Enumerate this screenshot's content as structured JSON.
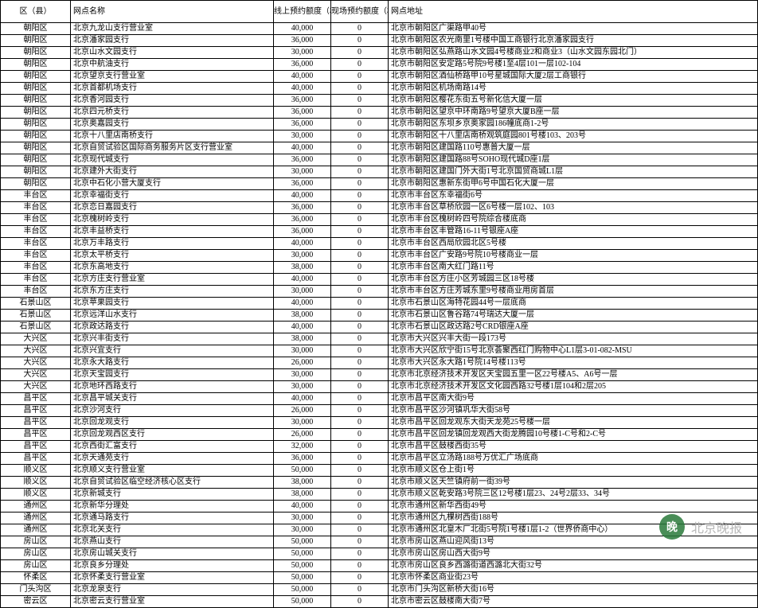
{
  "table": {
    "headers": {
      "district": "区（县）",
      "branch": "网点名称",
      "online": "线上预约额度（枚）",
      "onsite": "现场预约额度（枚）",
      "address": "网点地址"
    },
    "rows": [
      {
        "d": "朝阳区",
        "b": "北京九龙山支行营业室",
        "o": "40,000",
        "s": "0",
        "a": "北京市朝阳区广渠路甲40号"
      },
      {
        "d": "朝阳区",
        "b": "北京潘家园支行",
        "o": "36,000",
        "s": "0",
        "a": "北京市朝阳区农光南里1号楼中国工商银行北京潘家园支行"
      },
      {
        "d": "朝阳区",
        "b": "北京山水文园支行",
        "o": "30,000",
        "s": "0",
        "a": "北京市朝阳区弘燕路山水文园4号楼商业2和商业3（山水文园东园北门）"
      },
      {
        "d": "朝阳区",
        "b": "北京中航油支行",
        "o": "36,000",
        "s": "0",
        "a": "北京市朝阳区安定路5号院9号楼1至4层101一层102-104"
      },
      {
        "d": "朝阳区",
        "b": "北京望京支行营业室",
        "o": "40,000",
        "s": "0",
        "a": "北京市朝阳区酒仙桥路甲10号星城国际大厦2层工商银行"
      },
      {
        "d": "朝阳区",
        "b": "北京首都机场支行",
        "o": "40,000",
        "s": "0",
        "a": "北京市朝阳区机场南路14号"
      },
      {
        "d": "朝阳区",
        "b": "北京香河园支行",
        "o": "36,000",
        "s": "0",
        "a": "北京市朝阳区樱花东街五号新化信大厦一层"
      },
      {
        "d": "朝阳区",
        "b": "北京四元桥支行",
        "o": "36,000",
        "s": "0",
        "a": "北京市朝阳区望京中环南路9号望京大厦B座一层"
      },
      {
        "d": "朝阳区",
        "b": "北京奥嘉园支行",
        "o": "36,000",
        "s": "0",
        "a": "北京市朝阳区东坝乡京奥家园186幢底商1-2号"
      },
      {
        "d": "朝阳区",
        "b": "北京十八里店南桥支行",
        "o": "30,000",
        "s": "0",
        "a": "北京市朝阳区十八里店南桥观筑庭园801号楼103、203号"
      },
      {
        "d": "朝阳区",
        "b": "北京自贸试验区国际商务服务片区支行营业室",
        "o": "40,000",
        "s": "0",
        "a": "北京市朝阳区建国路110号惠普大厦一层"
      },
      {
        "d": "朝阳区",
        "b": "北京现代城支行",
        "o": "36,000",
        "s": "0",
        "a": "北京市朝阳区建国路88号SOHO现代城D座1层"
      },
      {
        "d": "朝阳区",
        "b": "北京建外大街支行",
        "o": "30,000",
        "s": "0",
        "a": "北京市朝阳区建国门外大街1号北京国贸商城L1层"
      },
      {
        "d": "朝阳区",
        "b": "北京中石化小营大厦支行",
        "o": "36,000",
        "s": "0",
        "a": "北京市朝阳区惠新东街甲6号中国石化大厦一层"
      },
      {
        "d": "丰台区",
        "b": "北京幸福街支行",
        "o": "40,000",
        "s": "0",
        "a": "北京市丰台区东幸福街6号"
      },
      {
        "d": "丰台区",
        "b": "北京恋日嘉园支行",
        "o": "36,000",
        "s": "0",
        "a": "北京市丰台区草桥欣园一区6号楼一层102、103"
      },
      {
        "d": "丰台区",
        "b": "北京槐树岭支行",
        "o": "36,000",
        "s": "0",
        "a": "北京市丰台区槐树岭四号院综合楼底商"
      },
      {
        "d": "丰台区",
        "b": "北京丰益桥支行",
        "o": "36,000",
        "s": "0",
        "a": "北京市丰台区丰管路16-11号银座A座"
      },
      {
        "d": "丰台区",
        "b": "北京万丰路支行",
        "o": "40,000",
        "s": "0",
        "a": "北京市丰台区西局欣园北区5号楼"
      },
      {
        "d": "丰台区",
        "b": "北京太平桥支行",
        "o": "30,000",
        "s": "0",
        "a": "北京市丰台区广安路9号院10号楼商业一层"
      },
      {
        "d": "丰台区",
        "b": "北京东高地支行",
        "o": "38,000",
        "s": "0",
        "a": "北京市丰台区南大红门路11号"
      },
      {
        "d": "丰台区",
        "b": "北京方庄支行营业室",
        "o": "40,000",
        "s": "0",
        "a": "北京市丰台区方庄小区芳城园三区18号楼"
      },
      {
        "d": "丰台区",
        "b": "北京东方庄支行",
        "o": "30,000",
        "s": "0",
        "a": "北京市丰台区方庄芳城东里9号楼商业用房首层"
      },
      {
        "d": "石景山区",
        "b": "北京苹果园支行",
        "o": "40,000",
        "s": "0",
        "a": "北京市石景山区海特花园44号一层底商"
      },
      {
        "d": "石景山区",
        "b": "北京远洋山水支行",
        "o": "38,000",
        "s": "0",
        "a": "北京市石景山区鲁谷路74号瑞达大厦一层"
      },
      {
        "d": "石景山区",
        "b": "北京政达路支行",
        "o": "40,000",
        "s": "0",
        "a": "北京市石景山区政达路2号CRD银座A座"
      },
      {
        "d": "大兴区",
        "b": "北京兴丰街支行",
        "o": "38,000",
        "s": "0",
        "a": "北京市大兴区兴丰大街一段173号"
      },
      {
        "d": "大兴区",
        "b": "北京兴宜支行",
        "o": "30,000",
        "s": "0",
        "a": "北京市大兴区欣宁街15号北京荟聚西红门购物中心L1层3-01-082-MSU"
      },
      {
        "d": "大兴区",
        "b": "北京永大路支行",
        "o": "26,000",
        "s": "0",
        "a": "北京市大兴区永大路1号院14号楼113号"
      },
      {
        "d": "大兴区",
        "b": "北京天宝园支行",
        "o": "30,000",
        "s": "0",
        "a": "北京市北京经济技术开发区天宝园五里一区22号楼A5、A6号一层"
      },
      {
        "d": "大兴区",
        "b": "北京地环西路支行",
        "o": "30,000",
        "s": "0",
        "a": "北京市北京经济技术开发区文化园西路32号楼1层104和2层205"
      },
      {
        "d": "昌平区",
        "b": "北京昌平城关支行",
        "o": "40,000",
        "s": "0",
        "a": "北京市昌平区南大街9号"
      },
      {
        "d": "昌平区",
        "b": "北京沙河支行",
        "o": "26,000",
        "s": "0",
        "a": "北京市昌平区沙河镇巩华大街58号"
      },
      {
        "d": "昌平区",
        "b": "北京回龙观支行",
        "o": "30,000",
        "s": "0",
        "a": "北京市昌平区回龙观东大街天龙苑25号楼一层"
      },
      {
        "d": "昌平区",
        "b": "北京回龙观西区支行",
        "o": "26,000",
        "s": "0",
        "a": "北京市昌平区回龙镇回龙观西大街龙腾园10号楼1-C号和2-C号"
      },
      {
        "d": "昌平区",
        "b": "北京西街汇富支行",
        "o": "32,000",
        "s": "0",
        "a": "北京市昌平区鼓楼西街35号"
      },
      {
        "d": "昌平区",
        "b": "北京天通苑支行",
        "o": "36,000",
        "s": "0",
        "a": "北京市昌平区立汤路188号万优汇广场底商"
      },
      {
        "d": "顺义区",
        "b": "北京顺义支行营业室",
        "o": "50,000",
        "s": "0",
        "a": "北京市顺义区仓上街1号"
      },
      {
        "d": "顺义区",
        "b": "北京自贸试验区临空经济核心区支行",
        "o": "38,000",
        "s": "0",
        "a": "北京市顺义区天竺镇府前一街39号"
      },
      {
        "d": "顺义区",
        "b": "北京新城支行",
        "o": "38,000",
        "s": "0",
        "a": "北京市顺义区乾安路3号院三区12号楼1层23、24号2层33、34号"
      },
      {
        "d": "通州区",
        "b": "北京新华分理处",
        "o": "40,000",
        "s": "0",
        "a": "北京市通州区新华西街49号"
      },
      {
        "d": "通州区",
        "b": "北京通马路支行",
        "o": "30,000",
        "s": "0",
        "a": "北京市通州区九棵树西街188号"
      },
      {
        "d": "通州区",
        "b": "北京北关支行",
        "o": "30,000",
        "s": "0",
        "a": "北京市通州区北皇木厂北街5号院1号楼1层1-2（世界侨商中心）"
      },
      {
        "d": "房山区",
        "b": "北京燕山支行",
        "o": "50,000",
        "s": "0",
        "a": "北京市房山区燕山迎风街13号"
      },
      {
        "d": "房山区",
        "b": "北京房山城关支行",
        "o": "50,000",
        "s": "0",
        "a": "北京市房山区房山西大街9号"
      },
      {
        "d": "房山区",
        "b": "北京良乡分理处",
        "o": "50,000",
        "s": "0",
        "a": "北京市房山区良乡西潞街道西潞北大街32号"
      },
      {
        "d": "怀柔区",
        "b": "北京怀柔支行营业室",
        "o": "50,000",
        "s": "0",
        "a": "北京市怀柔区商业街23号"
      },
      {
        "d": "门头沟区",
        "b": "北京龙泉支行",
        "o": "50,000",
        "s": "0",
        "a": "北京市门头沟区新桥大街16号"
      },
      {
        "d": "密云区",
        "b": "北京密云支行营业室",
        "o": "50,000",
        "s": "0",
        "a": "北京市密云区鼓楼南大街7号"
      }
    ]
  },
  "watermark": {
    "text": "北京晚报",
    "logo_bg": "#2a7a3a",
    "logo_text": "晚"
  }
}
